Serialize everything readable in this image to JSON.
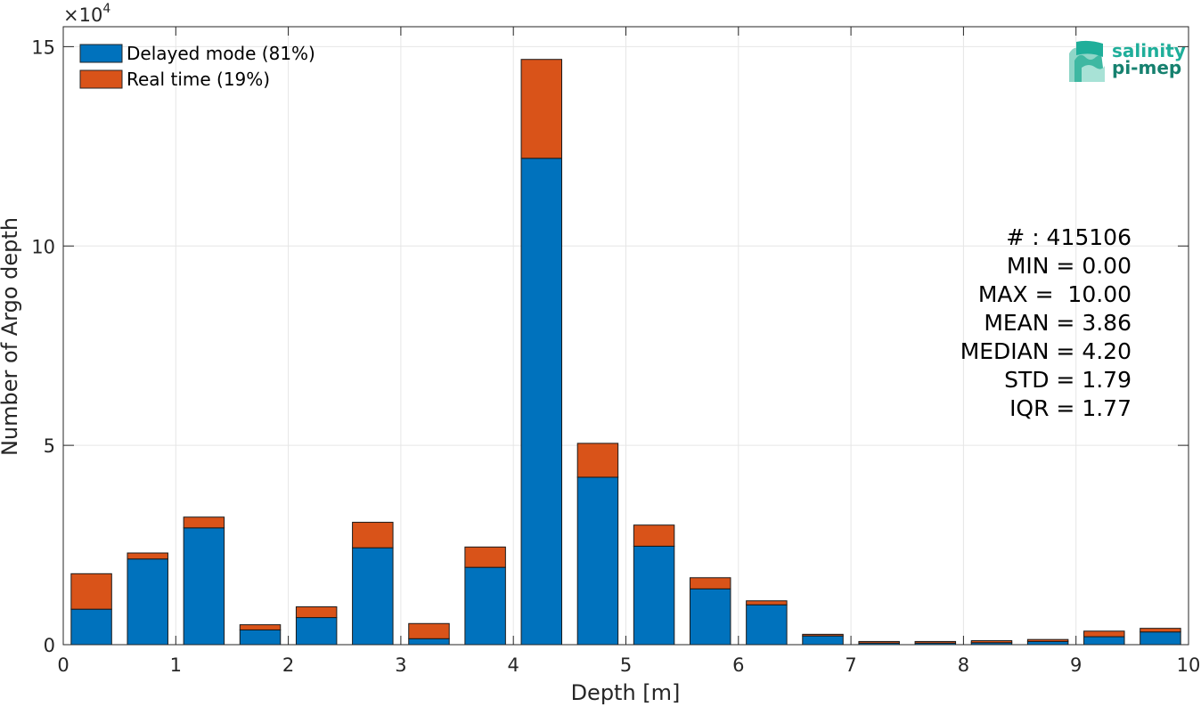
{
  "chart_data": {
    "type": "bar",
    "stacked": true,
    "xlabel": "Depth [m]",
    "ylabel": "Number of Argo depth",
    "y_exponent_label": "×10",
    "y_exponent_power": "4",
    "xlim": [
      0,
      10
    ],
    "ylim": [
      0,
      15.5
    ],
    "x_ticks": [
      "0",
      "1",
      "2",
      "3",
      "4",
      "5",
      "6",
      "7",
      "8",
      "9",
      "10"
    ],
    "y_ticks": [
      "0",
      "5",
      "10",
      "15"
    ],
    "grid": true,
    "legend_position": "top-left",
    "x": [
      0.25,
      0.75,
      1.25,
      1.75,
      2.25,
      2.75,
      3.25,
      3.75,
      4.25,
      4.75,
      5.25,
      5.75,
      6.25,
      6.75,
      7.25,
      7.75,
      8.25,
      8.75,
      9.25,
      9.75
    ],
    "series": [
      {
        "name": "Delayed mode (81%)",
        "color": "#0072bd",
        "values": [
          0.89,
          2.15,
          2.93,
          0.37,
          0.68,
          2.43,
          0.15,
          1.94,
          12.2,
          4.2,
          2.47,
          1.4,
          1.0,
          0.22,
          0.04,
          0.04,
          0.05,
          0.08,
          0.2,
          0.32
        ]
      },
      {
        "name": "Real time (19%)",
        "color": "#d95319",
        "values": [
          0.89,
          0.15,
          0.27,
          0.13,
          0.27,
          0.64,
          0.38,
          0.51,
          2.48,
          0.85,
          0.53,
          0.28,
          0.1,
          0.04,
          0.04,
          0.04,
          0.05,
          0.05,
          0.14,
          0.09
        ]
      }
    ],
    "stats": [
      "# : 415106",
      "MIN = 0.00",
      "MAX =  10.00",
      "MEAN = 3.86",
      "MEDIAN = 4.20",
      "STD = 1.79",
      "IQR = 1.77"
    ],
    "logo": {
      "line1": "salinity",
      "line2": "pi-mep",
      "color1": "#1fae9a",
      "color2": "#16816f"
    }
  }
}
